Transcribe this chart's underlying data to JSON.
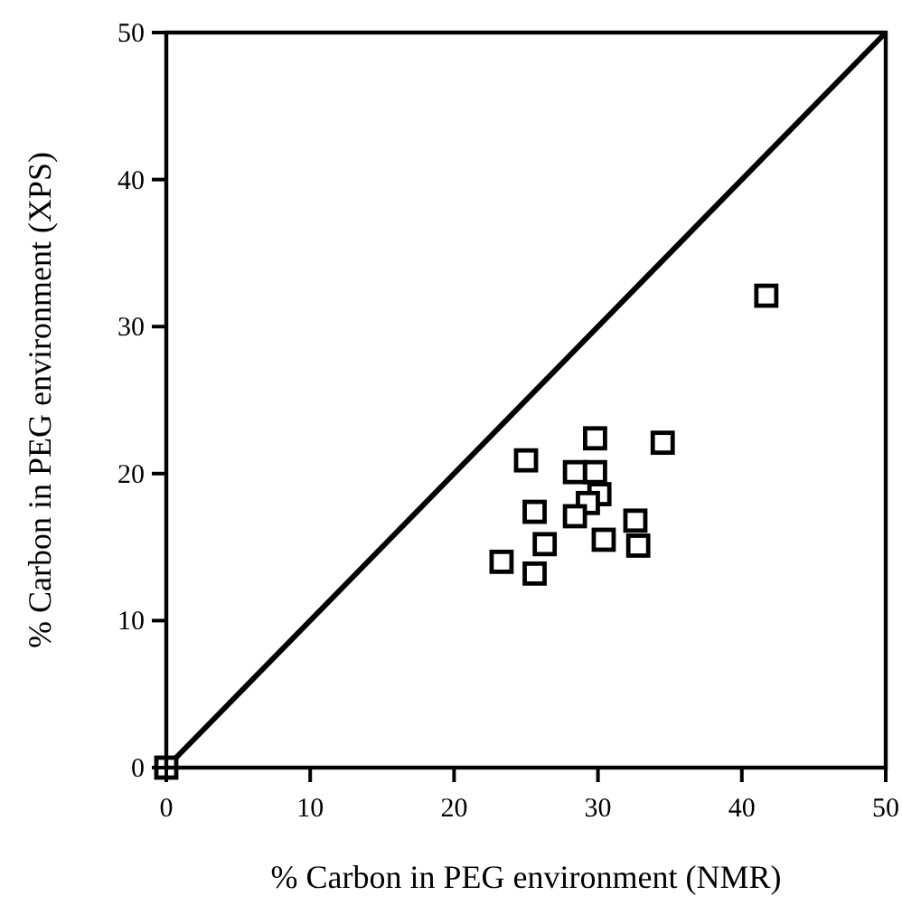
{
  "chart_data": {
    "type": "scatter",
    "xlabel": "% Carbon in PEG environment (NMR)",
    "ylabel": "% Carbon in PEG environment (XPS)",
    "xlim": [
      0,
      50
    ],
    "ylim": [
      0,
      50
    ],
    "xticks": [
      0,
      10,
      20,
      30,
      40,
      50
    ],
    "yticks": [
      0,
      10,
      20,
      30,
      40,
      50
    ],
    "grid": false,
    "series": [
      {
        "marker": "square",
        "color": "#000000",
        "x": [
          0,
          41.7,
          29.8,
          34.5,
          25.0,
          28.4,
          29.8,
          30.1,
          29.3,
          25.6,
          28.4,
          32.6,
          26.3,
          30.4,
          32.8,
          23.3,
          25.6
        ],
        "values": [
          0,
          32.1,
          22.4,
          22.1,
          20.9,
          20.1,
          20.1,
          18.6,
          18.0,
          17.4,
          17.1,
          16.8,
          15.2,
          15.5,
          15.1,
          14.0,
          13.2
        ]
      },
      {
        "type": "line",
        "marker": "none",
        "line_style": "solid",
        "color": "#000000",
        "x": [
          0,
          50
        ],
        "values": [
          0,
          50
        ]
      }
    ]
  }
}
